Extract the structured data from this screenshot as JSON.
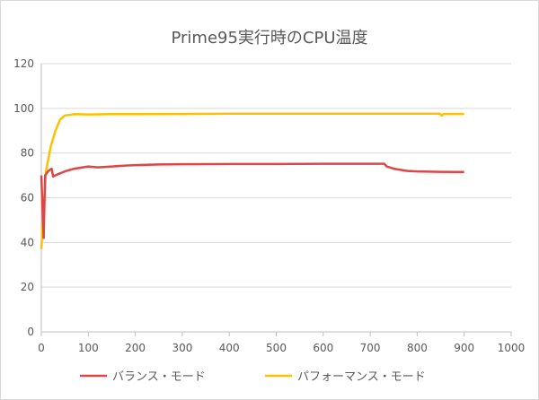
{
  "chart_data": {
    "type": "line",
    "title": "Prime95実行時のCPU温度",
    "xlabel": "",
    "ylabel": "",
    "xlim": [
      0,
      1000
    ],
    "ylim": [
      0,
      120
    ],
    "x_ticks": [
      "0",
      "100",
      "200",
      "300",
      "400",
      "500",
      "600",
      "700",
      "800",
      "900",
      "1000"
    ],
    "y_ticks": [
      "0",
      "20",
      "40",
      "60",
      "80",
      "100",
      "120"
    ],
    "grid": "horizontal",
    "legend_position": "bottom",
    "series": [
      {
        "name": "バランス・モード",
        "color": "#e04545",
        "points": [
          [
            0,
            70
          ],
          [
            5,
            42
          ],
          [
            8,
            70
          ],
          [
            15,
            72
          ],
          [
            22,
            73
          ],
          [
            25,
            69.5
          ],
          [
            35,
            70.5
          ],
          [
            50,
            71.8
          ],
          [
            70,
            73
          ],
          [
            100,
            74
          ],
          [
            120,
            73.6
          ],
          [
            150,
            74
          ],
          [
            180,
            74.4
          ],
          [
            200,
            74.6
          ],
          [
            250,
            74.9
          ],
          [
            300,
            75
          ],
          [
            400,
            75.1
          ],
          [
            500,
            75.1
          ],
          [
            600,
            75.2
          ],
          [
            700,
            75.2
          ],
          [
            730,
            75.2
          ],
          [
            735,
            74
          ],
          [
            750,
            73
          ],
          [
            780,
            72
          ],
          [
            800,
            71.8
          ],
          [
            850,
            71.6
          ],
          [
            900,
            71.5
          ]
        ]
      },
      {
        "name": "パフォーマンス・モード",
        "color": "#ffc000",
        "points": [
          [
            0,
            37
          ],
          [
            5,
            55
          ],
          [
            10,
            72
          ],
          [
            20,
            83
          ],
          [
            30,
            90
          ],
          [
            40,
            95
          ],
          [
            50,
            96.8
          ],
          [
            70,
            97.4
          ],
          [
            100,
            97.3
          ],
          [
            150,
            97.4
          ],
          [
            200,
            97.4
          ],
          [
            300,
            97.5
          ],
          [
            400,
            97.6
          ],
          [
            500,
            97.6
          ],
          [
            600,
            97.6
          ],
          [
            700,
            97.6
          ],
          [
            800,
            97.6
          ],
          [
            848,
            97.6
          ],
          [
            852,
            96.8
          ],
          [
            856,
            97.5
          ],
          [
            900,
            97.5
          ]
        ]
      }
    ]
  }
}
